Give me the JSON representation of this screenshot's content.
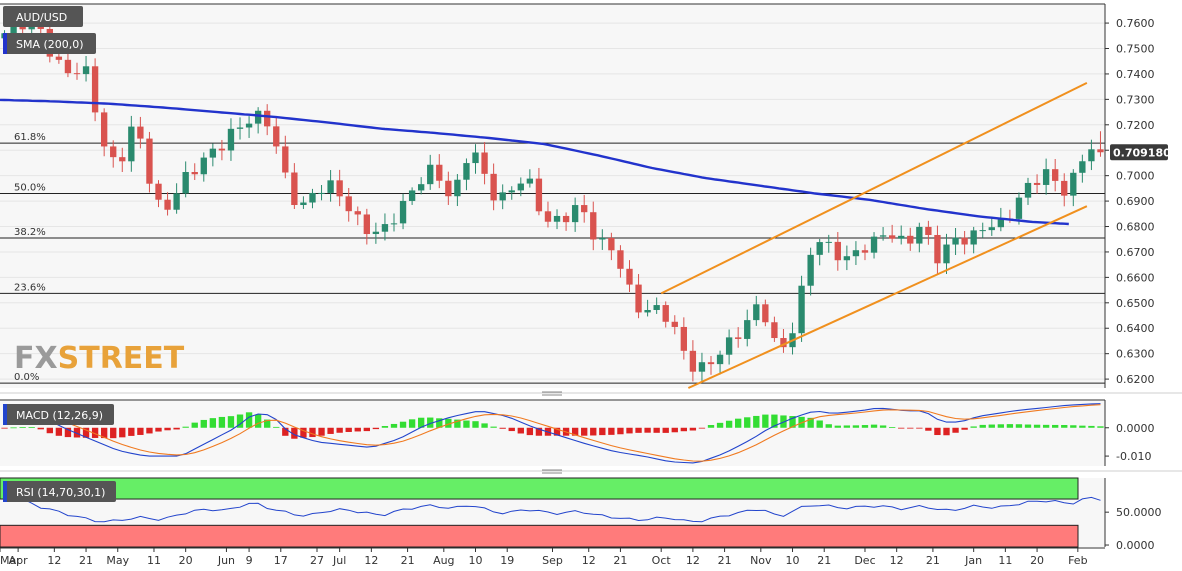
{
  "chart_data": [
    {
      "type": "candlestick",
      "panel": "price",
      "symbol": "AUD/USD",
      "indicator_label": "SMA (200,0)",
      "y_ticks": [
        "0.6200",
        "0.6300",
        "0.6400",
        "0.6500",
        "0.6600",
        "0.6700",
        "0.6800",
        "0.6900",
        "0.7000",
        "0.7100",
        "0.7200",
        "0.7300",
        "0.7400",
        "0.7500",
        "0.7600"
      ],
      "ylim": [
        0.6165,
        0.7675
      ],
      "last_price": "0.709180",
      "fibonacci": [
        {
          "label": "61.8%",
          "value": 0.7128
        },
        {
          "label": "50.0%",
          "value": 0.693
        },
        {
          "label": "38.2%",
          "value": 0.6755
        },
        {
          "label": "23.6%",
          "value": 0.6537
        },
        {
          "label": "0.0%",
          "value": 0.6184
        }
      ],
      "sma_200": {
        "times": [
          0,
          6,
          12,
          18,
          24,
          30,
          36,
          42,
          48,
          54,
          60,
          66,
          72,
          78,
          84,
          90,
          96,
          102,
          108,
          114,
          118
        ],
        "values": [
          0.7298,
          0.7292,
          0.7283,
          0.7268,
          0.725,
          0.7232,
          0.721,
          0.7185,
          0.7168,
          0.7148,
          0.7125,
          0.708,
          0.703,
          0.699,
          0.696,
          0.693,
          0.6905,
          0.687,
          0.684,
          0.6818,
          0.681
        ]
      },
      "channel_upper": {
        "times": [
          73,
          120
        ],
        "values": [
          0.6537,
          0.7365
        ]
      },
      "channel_lower": {
        "times": [
          76,
          120
        ],
        "values": [
          0.6165,
          0.688
        ]
      },
      "anchors": [
        [
          0,
          0.754
        ],
        [
          2,
          0.762
        ],
        [
          4,
          0.759
        ],
        [
          6,
          0.745
        ],
        [
          8,
          0.742
        ],
        [
          10,
          0.738
        ],
        [
          11,
          0.714
        ],
        [
          13,
          0.705
        ],
        [
          15,
          0.72
        ],
        [
          17,
          0.692
        ],
        [
          18,
          0.687
        ],
        [
          20,
          0.695
        ],
        [
          23,
          0.71
        ],
        [
          25,
          0.713
        ],
        [
          27,
          0.72
        ],
        [
          28,
          0.726
        ],
        [
          30,
          0.72
        ],
        [
          31,
          0.701
        ],
        [
          33,
          0.688
        ],
        [
          35,
          0.695
        ],
        [
          37,
          0.694
        ],
        [
          39,
          0.687
        ],
        [
          40,
          0.68
        ],
        [
          42,
          0.675
        ],
        [
          44,
          0.688
        ],
        [
          46,
          0.696
        ],
        [
          48,
          0.702
        ],
        [
          50,
          0.692
        ],
        [
          52,
          0.711
        ],
        [
          54,
          0.695
        ],
        [
          56,
          0.692
        ],
        [
          58,
          0.699
        ],
        [
          60,
          0.685
        ],
        [
          62,
          0.681
        ],
        [
          64,
          0.688
        ],
        [
          66,
          0.676
        ],
        [
          68,
          0.668
        ],
        [
          70,
          0.65
        ],
        [
          72,
          0.648
        ],
        [
          74,
          0.642
        ],
        [
          76,
          0.628
        ],
        [
          78,
          0.623
        ],
        [
          80,
          0.632
        ],
        [
          82,
          0.642
        ],
        [
          84,
          0.648
        ],
        [
          86,
          0.63
        ],
        [
          88,
          0.645
        ],
        [
          89,
          0.662
        ],
        [
          90,
          0.675
        ],
        [
          92,
          0.672
        ],
        [
          94,
          0.666
        ],
        [
          96,
          0.673
        ],
        [
          98,
          0.68
        ],
        [
          100,
          0.67
        ],
        [
          102,
          0.684
        ],
        [
          103,
          0.668
        ],
        [
          105,
          0.672
        ],
        [
          107,
          0.676
        ],
        [
          109,
          0.682
        ],
        [
          111,
          0.678
        ],
        [
          112,
          0.69
        ],
        [
          114,
          0.699
        ],
        [
          116,
          0.7
        ],
        [
          117,
          0.692
        ],
        [
          119,
          0.703
        ],
        [
          120,
          0.712
        ],
        [
          121,
          0.7092
        ]
      ],
      "grid": true
    },
    {
      "type": "macd",
      "panel": "macd",
      "indicator_label": "MACD (12,26,9)",
      "y_ticks": [
        "0.0000",
        "-0.010"
      ],
      "y_tick_values": [
        0.0,
        -0.01
      ],
      "ylim": [
        -0.0135,
        0.0098
      ],
      "macd_points": [
        [
          0,
          0.0045
        ],
        [
          4,
          0.005
        ],
        [
          7,
          0.0
        ],
        [
          10,
          -0.004
        ],
        [
          13,
          -0.008
        ],
        [
          16,
          -0.01
        ],
        [
          20,
          -0.01
        ],
        [
          23,
          -0.005
        ],
        [
          26,
          0.0
        ],
        [
          28,
          0.005
        ],
        [
          30,
          0.0045
        ],
        [
          32,
          -0.002
        ],
        [
          35,
          -0.005
        ],
        [
          38,
          -0.006
        ],
        [
          41,
          -0.007
        ],
        [
          44,
          -0.004
        ],
        [
          47,
          0.001
        ],
        [
          50,
          0.004
        ],
        [
          53,
          0.006
        ],
        [
          56,
          0.004
        ],
        [
          59,
          0.0
        ],
        [
          62,
          -0.003
        ],
        [
          65,
          -0.006
        ],
        [
          68,
          -0.0085
        ],
        [
          71,
          -0.01
        ],
        [
          74,
          -0.012
        ],
        [
          77,
          -0.0125
        ],
        [
          80,
          -0.009
        ],
        [
          83,
          -0.004
        ],
        [
          85,
          0.0
        ],
        [
          88,
          0.004
        ],
        [
          90,
          0.006
        ],
        [
          92,
          0.005
        ],
        [
          95,
          0.006
        ],
        [
          97,
          0.007
        ],
        [
          100,
          0.006
        ],
        [
          102,
          0.006
        ],
        [
          104,
          0.002
        ],
        [
          106,
          0.002
        ],
        [
          108,
          0.004
        ],
        [
          110,
          0.005
        ],
        [
          112,
          0.006
        ],
        [
          115,
          0.007
        ],
        [
          118,
          0.008
        ],
        [
          121,
          0.0085
        ]
      ]
    },
    {
      "type": "rsi",
      "panel": "rsi",
      "indicator_label": "RSI (14,70,30,1)",
      "y_ticks": [
        "50.0000",
        "0.0000"
      ],
      "y_tick_values": [
        50,
        0
      ],
      "ylim": [
        -3,
        102
      ],
      "overbought": 70,
      "oversold": 30,
      "rsi_points": [
        [
          0,
          70
        ],
        [
          2,
          72
        ],
        [
          4,
          60
        ],
        [
          6,
          52
        ],
        [
          8,
          45
        ],
        [
          10,
          38
        ],
        [
          12,
          35
        ],
        [
          14,
          40
        ],
        [
          16,
          42
        ],
        [
          18,
          38
        ],
        [
          20,
          48
        ],
        [
          23,
          55
        ],
        [
          25,
          52
        ],
        [
          27,
          62
        ],
        [
          28,
          64
        ],
        [
          30,
          55
        ],
        [
          32,
          48
        ],
        [
          34,
          44
        ],
        [
          36,
          52
        ],
        [
          38,
          54
        ],
        [
          40,
          50
        ],
        [
          42,
          45
        ],
        [
          44,
          52
        ],
        [
          46,
          58
        ],
        [
          48,
          60
        ],
        [
          50,
          55
        ],
        [
          52,
          62
        ],
        [
          54,
          52
        ],
        [
          56,
          48
        ],
        [
          58,
          55
        ],
        [
          60,
          50
        ],
        [
          62,
          48
        ],
        [
          64,
          52
        ],
        [
          66,
          45
        ],
        [
          68,
          42
        ],
        [
          70,
          38
        ],
        [
          72,
          40
        ],
        [
          74,
          42
        ],
        [
          76,
          35
        ],
        [
          78,
          38
        ],
        [
          80,
          45
        ],
        [
          82,
          50
        ],
        [
          84,
          56
        ],
        [
          86,
          42
        ],
        [
          88,
          55
        ],
        [
          90,
          62
        ],
        [
          92,
          58
        ],
        [
          94,
          56
        ],
        [
          96,
          60
        ],
        [
          98,
          58
        ],
        [
          100,
          55
        ],
        [
          102,
          60
        ],
        [
          104,
          52
        ],
        [
          106,
          55
        ],
        [
          108,
          60
        ],
        [
          110,
          56
        ],
        [
          112,
          62
        ],
        [
          114,
          66
        ],
        [
          116,
          68
        ],
        [
          118,
          62
        ],
        [
          120,
          72
        ],
        [
          121,
          70
        ]
      ]
    }
  ],
  "x_axis": {
    "labels": [
      {
        "t": 0,
        "label": "Mar"
      },
      {
        "t": 2,
        "label": "Apr"
      },
      {
        "t": 6,
        "label": "12"
      },
      {
        "t": 9.5,
        "label": "21"
      },
      {
        "t": 13,
        "label": "May"
      },
      {
        "t": 17,
        "label": "11"
      },
      {
        "t": 20.5,
        "label": "20"
      },
      {
        "t": 25,
        "label": "Jun"
      },
      {
        "t": 27.5,
        "label": "9"
      },
      {
        "t": 31,
        "label": "17"
      },
      {
        "t": 35,
        "label": "27"
      },
      {
        "t": 37.5,
        "label": "Jul"
      },
      {
        "t": 41,
        "label": "12"
      },
      {
        "t": 45,
        "label": "21"
      },
      {
        "t": 49,
        "label": "Aug"
      },
      {
        "t": 52.5,
        "label": "10"
      },
      {
        "t": 56,
        "label": "19"
      },
      {
        "t": 61,
        "label": "Sep"
      },
      {
        "t": 65,
        "label": "12"
      },
      {
        "t": 68.5,
        "label": "21"
      },
      {
        "t": 73,
        "label": "Oct"
      },
      {
        "t": 76.5,
        "label": "12"
      },
      {
        "t": 80,
        "label": "21"
      },
      {
        "t": 84,
        "label": "Nov"
      },
      {
        "t": 87.5,
        "label": "10"
      },
      {
        "t": 91,
        "label": "21"
      },
      {
        "t": 95.5,
        "label": "Dec"
      },
      {
        "t": 99,
        "label": "12"
      },
      {
        "t": 103,
        "label": "21"
      },
      {
        "t": 107.5,
        "label": "Jan"
      },
      {
        "t": 111,
        "label": "11"
      },
      {
        "t": 114.5,
        "label": "20"
      },
      {
        "t": 119,
        "label": "Feb"
      }
    ],
    "t_max": 122
  },
  "watermark": "FXSTREET",
  "colors": {
    "up": "#2a8a6e",
    "down": "#d9534f",
    "sma": "#2233cc",
    "channel": "#f0901e",
    "macd_line": "#2244cc",
    "signal_line": "#f07a20",
    "hist_up": "#33dd33",
    "hist_down": "#dd2222",
    "rsi_line": "#2244cc",
    "overbought_zone": "#66ee66",
    "oversold_zone": "#ff7b7b",
    "tag_bg": "#555555",
    "price_tag_bg": "#3a3a3a"
  }
}
